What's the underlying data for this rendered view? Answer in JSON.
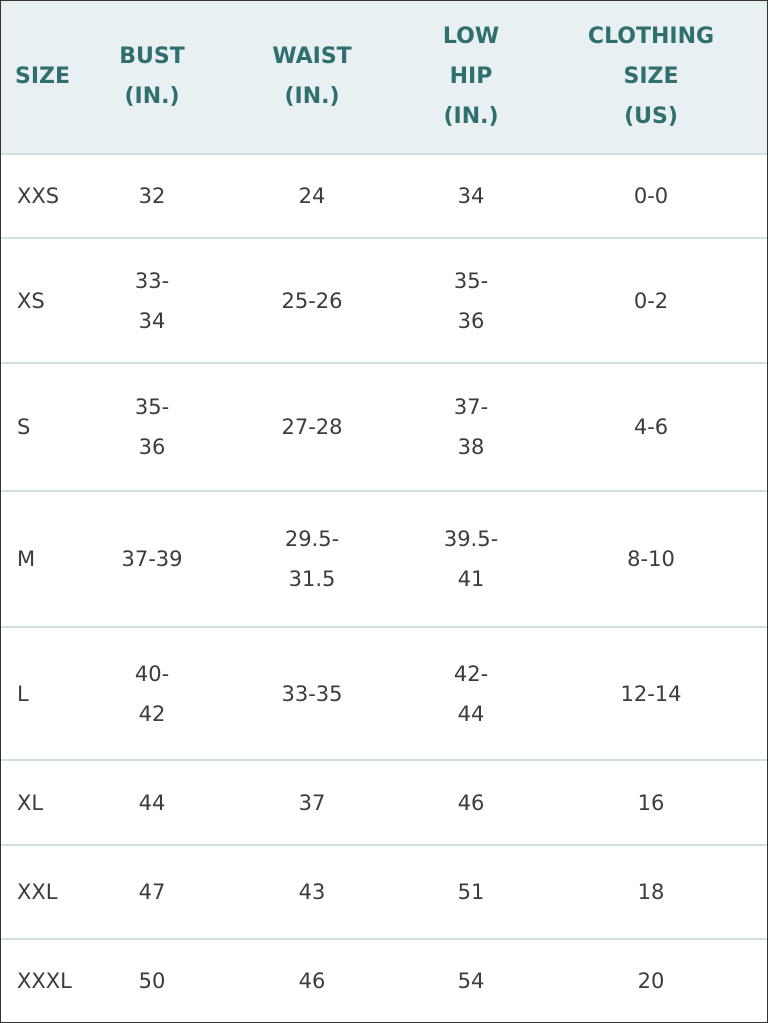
{
  "table": {
    "headers": [
      "SIZE",
      "BUST\n(IN.)",
      "WAIST\n(IN.)",
      "LOW\nHIP\n(IN.)",
      "CLOTHING\nSIZE\n(US)"
    ],
    "rows": [
      [
        "XXS",
        "32",
        "24",
        "34",
        "0-0"
      ],
      [
        "XS",
        "33-\n34",
        "25-26",
        "35-\n36",
        "0-2"
      ],
      [
        "S",
        "35-\n36",
        "27-28",
        "37-\n38",
        "4-6"
      ],
      [
        "M",
        "37-39",
        "29.5-\n31.5",
        "39.5-\n41",
        "8-10"
      ],
      [
        "L",
        "40-\n42",
        "33-35",
        "42-\n44",
        "12-14"
      ],
      [
        "XL",
        "44",
        "37",
        "46",
        "16"
      ],
      [
        "XXL",
        "47",
        "43",
        "51",
        "18"
      ],
      [
        "XXXL",
        "50",
        "46",
        "54",
        "20"
      ]
    ]
  },
  "colors": {
    "header_bg": "#e9f0f2",
    "header_text": "#2f6f6e",
    "body_text": "#3c3c3c",
    "divider": "#cfe1dc"
  }
}
